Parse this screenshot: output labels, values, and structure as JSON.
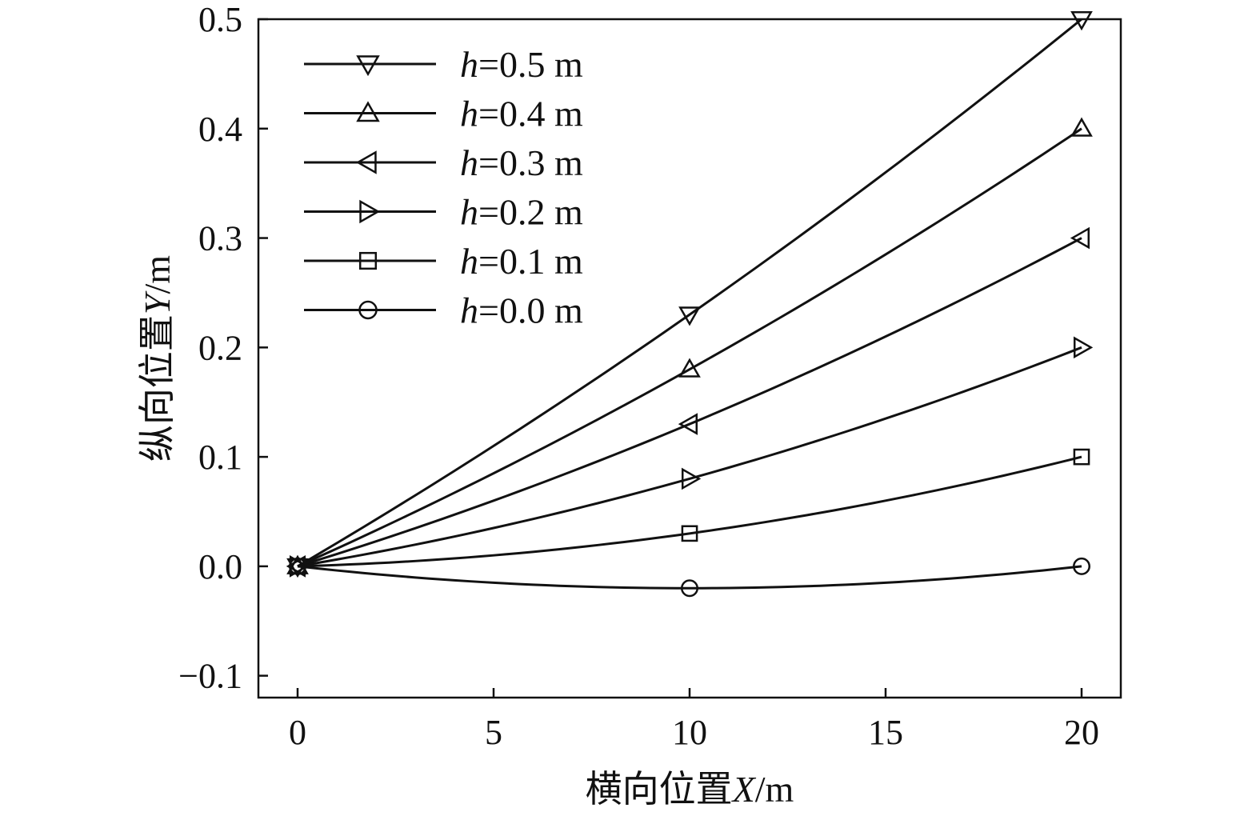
{
  "chart_data": {
    "type": "line",
    "xlabel_prefix": "横向位置",
    "xlabel_var": "X",
    "xlabel_unit": "/m",
    "ylabel_prefix": "纵向位置",
    "ylabel_var": "Y",
    "ylabel_unit": "/m",
    "xlim": [
      -1,
      21
    ],
    "ylim": [
      -0.12,
      0.5
    ],
    "xticks": [
      0,
      5,
      10,
      15,
      20
    ],
    "xtick_labels": [
      "0",
      "5",
      "10",
      "15",
      "20"
    ],
    "yticks": [
      -0.1,
      0.0,
      0.1,
      0.2,
      0.3,
      0.4,
      0.5
    ],
    "ytick_labels": [
      "−0.1",
      "0.0",
      "0.1",
      "0.2",
      "0.3",
      "0.4",
      "0.5"
    ],
    "grid": false,
    "legend_position": "top-left",
    "series": [
      {
        "name": "h=0.5 m",
        "var": "h",
        "label_rest": "=0.5 m",
        "marker": "triangle-down",
        "x": [
          0,
          10,
          20
        ],
        "y": [
          0.0,
          0.23,
          0.5
        ]
      },
      {
        "name": "h=0.4 m",
        "var": "h",
        "label_rest": "=0.4 m",
        "marker": "triangle-up",
        "x": [
          0,
          10,
          20
        ],
        "y": [
          0.0,
          0.18,
          0.4
        ]
      },
      {
        "name": "h=0.3 m",
        "var": "h",
        "label_rest": "=0.3 m",
        "marker": "triangle-left",
        "x": [
          0,
          10,
          20
        ],
        "y": [
          0.0,
          0.13,
          0.3
        ]
      },
      {
        "name": "h=0.2 m",
        "var": "h",
        "label_rest": "=0.2 m",
        "marker": "triangle-right",
        "x": [
          0,
          10,
          20
        ],
        "y": [
          0.0,
          0.08,
          0.2
        ]
      },
      {
        "name": "h=0.1 m",
        "var": "h",
        "label_rest": "=0.1 m",
        "marker": "square",
        "x": [
          0,
          10,
          20
        ],
        "y": [
          0.0,
          0.03,
          0.1
        ]
      },
      {
        "name": "h=0.0 m",
        "var": "h",
        "label_rest": "=0.0 m",
        "marker": "circle",
        "x": [
          0,
          10,
          20
        ],
        "y": [
          0.0,
          -0.02,
          0.0
        ]
      }
    ]
  }
}
